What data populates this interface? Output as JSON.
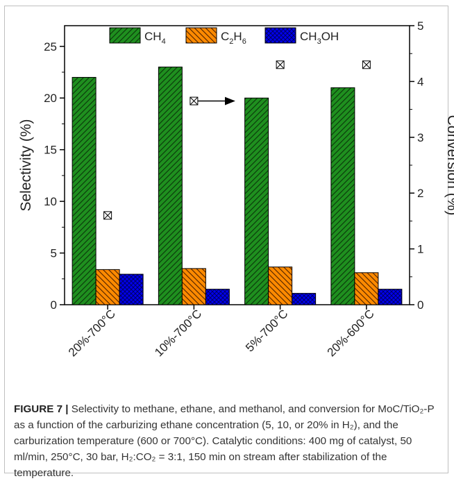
{
  "chart_data": {
    "type": "bar",
    "categories": [
      "20%-700°C",
      "10%-700°C",
      "5%-700°C",
      "20%-600°C"
    ],
    "series": [
      {
        "name": "CH4",
        "legend_main": "CH",
        "legend_sub": "4",
        "values": [
          22.0,
          23.0,
          20.0,
          21.0
        ],
        "color": "#1f8f1f",
        "pattern": "diag-fwd"
      },
      {
        "name": "C2H6",
        "legend_parts": [
          "C",
          "2",
          "H",
          "6"
        ],
        "values": [
          3.4,
          3.5,
          3.65,
          3.1
        ],
        "color": "#ff8000",
        "pattern": "diag-back"
      },
      {
        "name": "CH3OH",
        "legend_parts": [
          "CH",
          "3",
          "OH"
        ],
        "values": [
          2.95,
          1.5,
          1.1,
          1.5
        ],
        "color": "#0000ee",
        "pattern": "crosshatch"
      }
    ],
    "conversion": {
      "values": [
        1.6,
        3.65,
        4.3,
        4.3
      ],
      "marker": "boxed-x",
      "arrow_on_index": 1,
      "arrow_direction": "right"
    },
    "ylabel": "Selectivity (%)",
    "ylim": [
      0,
      27
    ],
    "yticks": [
      0,
      5,
      10,
      15,
      20,
      25
    ],
    "y2label": "Conversion (%)",
    "y2lim": [
      0,
      5
    ],
    "y2ticks": [
      0,
      1,
      2,
      3,
      4,
      5
    ],
    "legend_position": "top-inside"
  },
  "caption": {
    "label": "FIGURE 7 |",
    "text": "Selectivity to methane, ethane, and methanol, and conversion for MoC/TiO₂-P as a function of the carburizing ethane concentration (5, 10, or 20% in H₂), and the carburization temperature (600 or 700°C). Catalytic conditions: 400 mg of catalyst, 50 ml/min, 250°C, 30 bar, H₂:CO₂ = 3:1, 150 min on stream after stabilization of the temperature."
  }
}
